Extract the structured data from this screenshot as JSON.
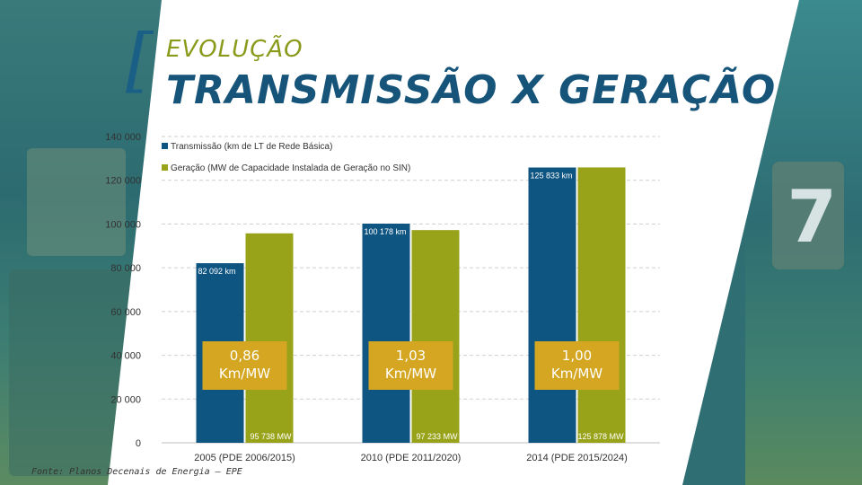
{
  "header": {
    "title_small": "EVOLUÇÃO",
    "title_big": "TRANSMISSÃO X GERAÇÃO"
  },
  "background": {
    "digit": "7"
  },
  "source": "Fonte: Planos Decenais de Energia – EPE",
  "colors": {
    "transmission": "#0f5581",
    "generation": "#98a31a",
    "ratio_box": "#d4a621",
    "ratio_text": "#ffffff",
    "grid": "#cfcfcf",
    "axis_text": "#333333"
  },
  "chart_data": {
    "type": "bar",
    "categories": [
      "2005 (PDE 2006/2015)",
      "2010 (PDE 2011/2020)",
      "2014 (PDE 2015/2024)"
    ],
    "series": [
      {
        "name": "Transmissão (km de LT de Rede Básica)",
        "values": [
          82092,
          100178,
          125833
        ],
        "labels": [
          "82 092 km",
          "100 178 km",
          "125 833 km"
        ]
      },
      {
        "name": "Geração (MW de Capacidade Instalada de Geração no SIN)",
        "values": [
          95738,
          97233,
          125878
        ],
        "labels": [
          "95 738 MW",
          "97 233 MW",
          "125 878 MW"
        ]
      }
    ],
    "ratios": [
      "0,86\nKm/MW",
      "1,03\nKm/MW",
      "1,00\nKm/MW"
    ],
    "ylim": [
      0,
      140000
    ],
    "yticks": [
      0,
      20000,
      40000,
      60000,
      80000,
      100000,
      120000,
      140000
    ],
    "ytick_labels": [
      "0",
      "20 000",
      "40 000",
      "60 000",
      "80 000",
      "100 000",
      "120 000",
      "140 000"
    ],
    "grid": true,
    "legend_position": "top-left"
  }
}
